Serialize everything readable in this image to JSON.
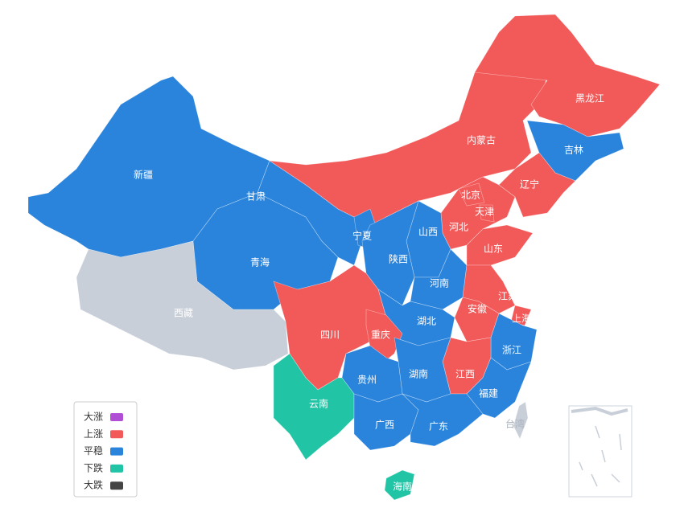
{
  "legend": [
    {
      "label": "大涨",
      "color": "#b04fd6"
    },
    {
      "label": "上涨",
      "color": "#f25a5a"
    },
    {
      "label": "平稳",
      "color": "#2a84dc"
    },
    {
      "label": "下跌",
      "color": "#22c4a6"
    },
    {
      "label": "大跌",
      "color": "#454545"
    }
  ],
  "other_color": "#c9cfd8",
  "regions": [
    {
      "name": "新疆",
      "category": "平稳"
    },
    {
      "name": "西藏",
      "category": null
    },
    {
      "name": "青海",
      "category": "平稳"
    },
    {
      "name": "甘肃",
      "category": "平稳"
    },
    {
      "name": "内蒙古",
      "category": "上涨"
    },
    {
      "name": "黑龙江",
      "category": "上涨"
    },
    {
      "name": "吉林",
      "category": "平稳"
    },
    {
      "name": "辽宁",
      "category": "上涨"
    },
    {
      "name": "河北",
      "category": "上涨"
    },
    {
      "name": "北京",
      "category": "上涨"
    },
    {
      "name": "天津",
      "category": "上涨"
    },
    {
      "name": "山西",
      "category": "平稳"
    },
    {
      "name": "宁夏",
      "category": "平稳"
    },
    {
      "name": "陕西",
      "category": "平稳"
    },
    {
      "name": "山东",
      "category": "上涨"
    },
    {
      "name": "河南",
      "category": "平稳"
    },
    {
      "name": "江苏",
      "category": "上涨"
    },
    {
      "name": "上海",
      "category": "上涨"
    },
    {
      "name": "安徽",
      "category": "上涨"
    },
    {
      "name": "湖北",
      "category": "平稳"
    },
    {
      "name": "四川",
      "category": "上涨"
    },
    {
      "name": "重庆",
      "category": "上涨"
    },
    {
      "name": "浙江",
      "category": "平稳"
    },
    {
      "name": "江西",
      "category": "上涨"
    },
    {
      "name": "湖南",
      "category": "平稳"
    },
    {
      "name": "贵州",
      "category": "平稳"
    },
    {
      "name": "云南",
      "category": "下跌"
    },
    {
      "name": "广西",
      "category": "平稳"
    },
    {
      "name": "广东",
      "category": "平稳"
    },
    {
      "name": "福建",
      "category": "平稳"
    },
    {
      "name": "海南",
      "category": "下跌"
    },
    {
      "name": "台湾",
      "category": null
    }
  ]
}
